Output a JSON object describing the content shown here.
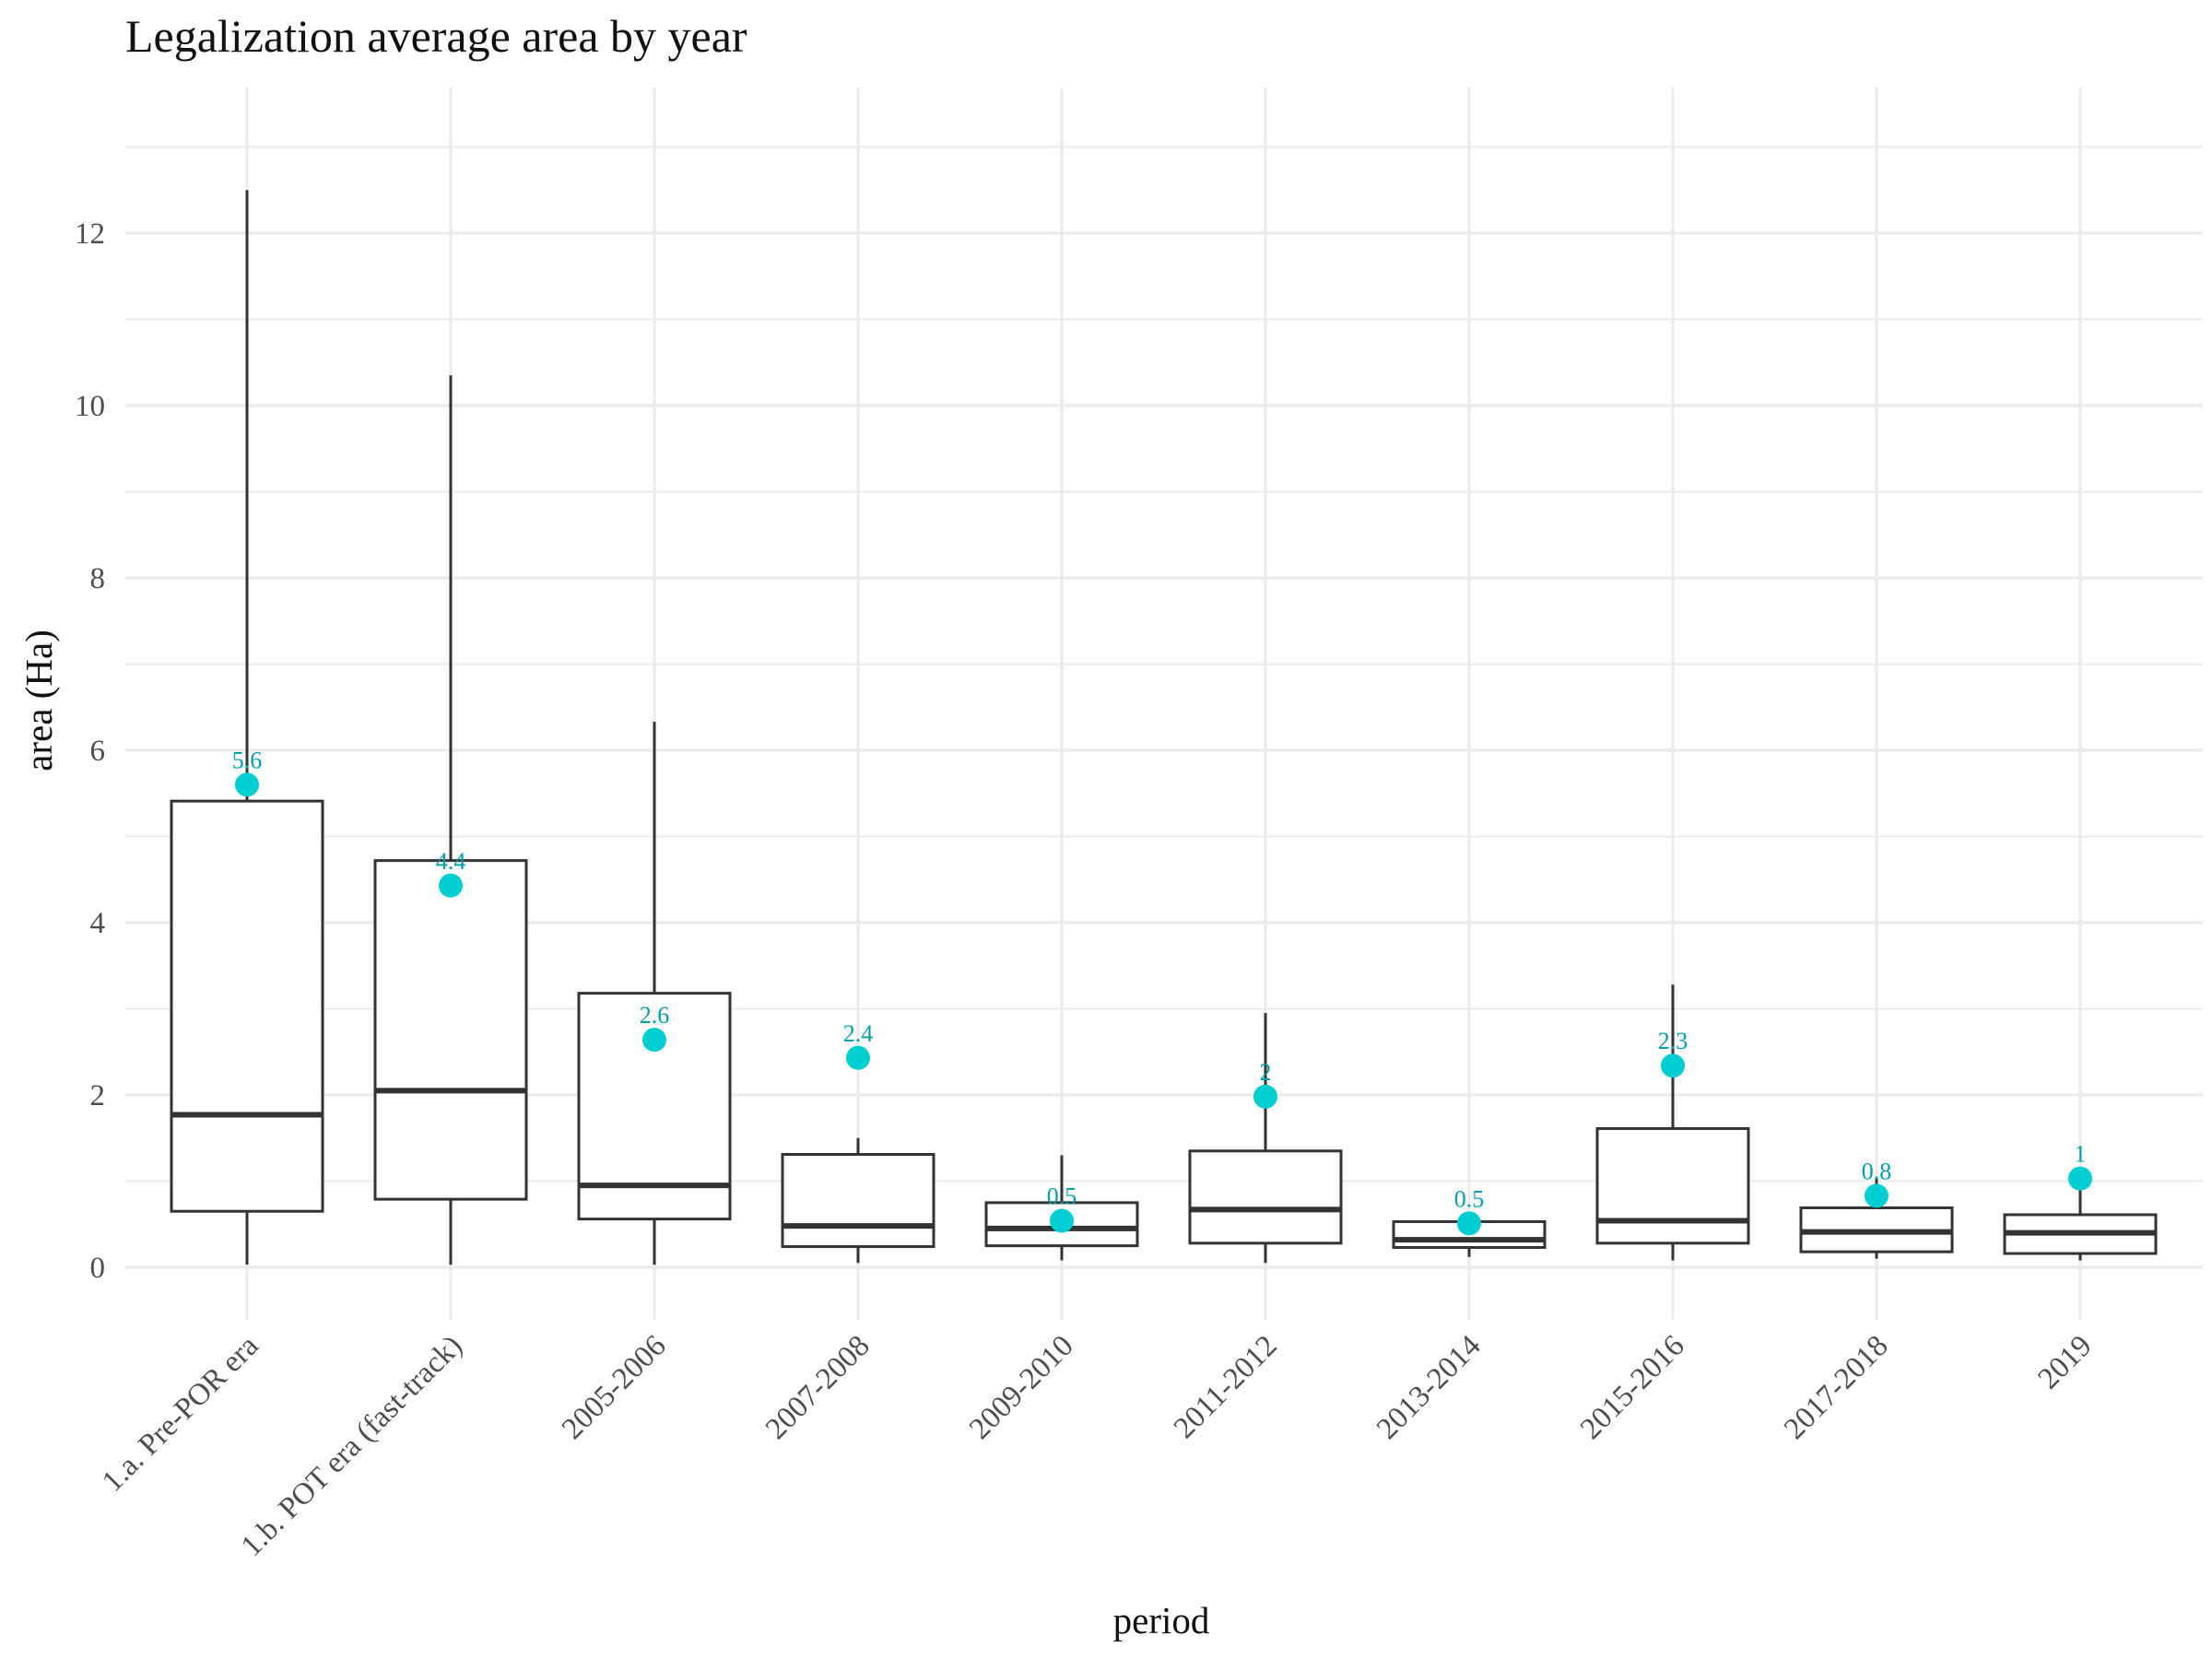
{
  "chart_data": {
    "type": "box",
    "title": "Legalization average area by year",
    "xlabel": "period",
    "ylabel": "area (Ha)",
    "ylim": [
      -0.5,
      13.5
    ],
    "yticks": [
      0,
      2,
      4,
      6,
      8,
      10,
      12
    ],
    "grid": true,
    "legend": "none",
    "colors": {
      "box": "#333333",
      "mean_point": "#00CED1",
      "mean_label": "#00A0A8",
      "grid": "#ebebeb"
    },
    "categories": [
      "1.a. Pre-POR era",
      "1.b. POT era (fast-track)",
      "2005-2006",
      "2007-2008",
      "2009-2010",
      "2011-2012",
      "2013-2014",
      "2015-2016",
      "2017-2018",
      "2019"
    ],
    "boxes": [
      {
        "min": 0.03,
        "q1": 0.65,
        "median": 1.77,
        "q3": 5.41,
        "max": 12.5
      },
      {
        "min": 0.03,
        "q1": 0.79,
        "median": 2.05,
        "q3": 4.72,
        "max": 10.35
      },
      {
        "min": 0.03,
        "q1": 0.56,
        "median": 0.95,
        "q3": 3.18,
        "max": 6.33
      },
      {
        "min": 0.05,
        "q1": 0.24,
        "median": 0.48,
        "q3": 1.31,
        "max": 1.5
      },
      {
        "min": 0.08,
        "q1": 0.25,
        "median": 0.45,
        "q3": 0.75,
        "max": 1.3
      },
      {
        "min": 0.05,
        "q1": 0.28,
        "median": 0.67,
        "q3": 1.35,
        "max": 2.95
      },
      {
        "min": 0.12,
        "q1": 0.23,
        "median": 0.32,
        "q3": 0.53,
        "max": 0.6
      },
      {
        "min": 0.08,
        "q1": 0.28,
        "median": 0.54,
        "q3": 1.61,
        "max": 3.28
      },
      {
        "min": 0.1,
        "q1": 0.18,
        "median": 0.41,
        "q3": 0.69,
        "max": 1.05
      },
      {
        "min": 0.08,
        "q1": 0.16,
        "median": 0.4,
        "q3": 0.61,
        "max": 1.0
      }
    ],
    "means": [
      5.6,
      4.43,
      2.64,
      2.43,
      0.54,
      1.98,
      0.51,
      2.34,
      0.83,
      1.03
    ],
    "mean_labels": [
      "5.6",
      "4.4",
      "2.6",
      "2.4",
      "0.5",
      "2",
      "0.5",
      "2.3",
      "0.8",
      "1"
    ]
  }
}
